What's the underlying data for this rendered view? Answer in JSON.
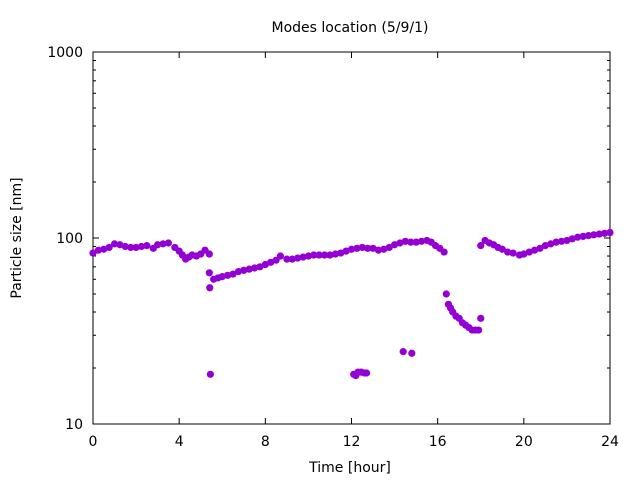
{
  "chart_data": {
    "type": "scatter",
    "title": "Modes location (5/9/1)",
    "xlabel": "Time [hour]",
    "ylabel": "Particle size [nm]",
    "xlim": [
      0,
      24
    ],
    "ylim": [
      10,
      1000
    ],
    "yscale": "log",
    "xticks": [
      "0",
      "4",
      "8",
      "12",
      "16",
      "20",
      "24"
    ],
    "yticks": [
      "10",
      "100",
      "1000"
    ],
    "grid": false,
    "marker_color": "#9400d3",
    "series": [
      {
        "name": "modes",
        "x": [
          0,
          0.25,
          0.5,
          0.75,
          1.0,
          1.25,
          1.5,
          1.75,
          2.0,
          2.25,
          2.5,
          2.8,
          3.0,
          3.25,
          3.5,
          3.8,
          4.0,
          4.15,
          4.3,
          4.45,
          4.6,
          4.8,
          5.0,
          5.2,
          5.4,
          5.4,
          5.42,
          5.45,
          5.6,
          5.8,
          6.0,
          6.25,
          6.5,
          6.75,
          7.0,
          7.25,
          7.5,
          7.75,
          8.0,
          8.25,
          8.5,
          8.7,
          9.0,
          9.25,
          9.5,
          9.75,
          10.0,
          10.25,
          10.5,
          10.75,
          11.0,
          11.25,
          11.5,
          11.75,
          12.0,
          12.25,
          12.5,
          12.75,
          13.0,
          13.25,
          13.5,
          13.75,
          14.0,
          14.25,
          14.5,
          14.75,
          15.0,
          15.25,
          15.5,
          15.7,
          15.9,
          16.1,
          16.3,
          12.1,
          12.2,
          12.3,
          12.45,
          12.6,
          12.7,
          14.4,
          14.8,
          16.4,
          16.5,
          16.6,
          16.7,
          16.85,
          17.0,
          17.15,
          17.3,
          17.45,
          17.6,
          17.75,
          17.9,
          18.0,
          18.0,
          18.2,
          18.4,
          18.6,
          18.8,
          19.0,
          19.25,
          19.5,
          19.8,
          20.0,
          20.25,
          20.5,
          20.75,
          21.0,
          21.25,
          21.5,
          21.75,
          22.0,
          22.25,
          22.5,
          22.75,
          23.0,
          23.25,
          23.5,
          23.75,
          24.0
        ],
        "y": [
          83,
          86,
          87,
          89,
          93,
          92,
          90,
          89,
          89,
          90,
          91,
          88,
          92,
          93,
          94,
          89,
          85,
          81,
          77,
          79,
          81,
          80,
          82,
          86,
          82,
          65,
          54,
          18.5,
          60,
          61,
          62,
          63,
          64,
          66,
          67,
          68,
          69,
          70,
          72,
          74,
          76,
          80,
          77,
          77,
          78,
          79,
          80,
          81,
          81,
          81,
          81,
          82,
          83,
          85,
          87,
          88,
          89,
          88,
          88,
          86,
          87,
          89,
          92,
          94,
          96,
          95,
          95,
          96,
          97,
          95,
          91,
          88,
          84,
          18.5,
          18.2,
          19,
          19,
          18.8,
          18.8,
          24.5,
          24,
          50,
          44,
          42,
          40,
          38,
          37,
          35,
          34,
          33,
          32,
          32,
          32,
          37,
          91,
          97,
          94,
          92,
          89,
          87,
          84,
          83,
          81,
          82,
          84,
          86,
          88,
          91,
          93,
          95,
          96,
          97,
          99,
          101,
          102,
          103,
          104,
          105,
          106,
          107
        ]
      }
    ]
  }
}
